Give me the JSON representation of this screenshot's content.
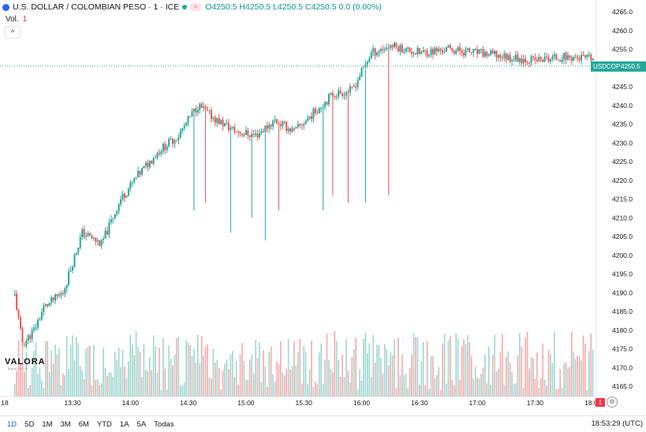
{
  "header": {
    "symbol_title": "U.S. DOLLAR / COLOMBIAN PESO · 1 · ICE",
    "badge": "≈",
    "ohlc": "O4250.5 H4250.5 L4250.5 C4250.5 0.0 (0.00%)",
    "volume_label": "Vol.",
    "volume_value": "1",
    "collapse_glyph": "^"
  },
  "price_badge": {
    "symbol": "USDCOP",
    "price": "4250.5"
  },
  "marker": "1",
  "watermark": {
    "word": "VALORA",
    "sub": "ANALITIK"
  },
  "bottom": {
    "timeframes": [
      "1D",
      "5D",
      "1M",
      "3M",
      "6M",
      "YTD",
      "1A",
      "5A",
      "Todas"
    ],
    "clock": "18:53:29 (UTC)"
  },
  "colors": {
    "up": "#26a69a",
    "down": "#ef5350",
    "vol_up": "#9ed6d0",
    "vol_down": "#f7a9a7",
    "accent": "#2962ff"
  },
  "chart_data": {
    "type": "candlestick",
    "title": "U.S. DOLLAR / COLOMBIAN PESO · 1 · ICE",
    "y_ticks": [
      4165,
      4170,
      4175,
      4180,
      4185,
      4190,
      4195,
      4200,
      4205,
      4210,
      4215,
      4220,
      4225,
      4230,
      4235,
      4240,
      4245,
      4250,
      4255,
      4260,
      4265
    ],
    "ylim": [
      4162,
      4266
    ],
    "x_ticks": [
      "18",
      "13:30",
      "14:00",
      "14:30",
      "15:00",
      "15:30",
      "16:00",
      "16:30",
      "17:00",
      "17:30",
      "18:00"
    ],
    "last_price": 4250.5,
    "anchors": [
      [
        "12:58",
        4196
      ],
      [
        "13:04",
        4176
      ],
      [
        "13:10",
        4180
      ],
      [
        "13:15",
        4186
      ],
      [
        "13:25",
        4190
      ],
      [
        "13:35",
        4206
      ],
      [
        "13:45",
        4203
      ],
      [
        "13:55",
        4215
      ],
      [
        "14:05",
        4222
      ],
      [
        "14:15",
        4228
      ],
      [
        "14:25",
        4232
      ],
      [
        "14:35",
        4240
      ],
      [
        "14:45",
        4236
      ],
      [
        "14:55",
        4233
      ],
      [
        "15:05",
        4232
      ],
      [
        "15:15",
        4236
      ],
      [
        "15:25",
        4233
      ],
      [
        "15:35",
        4238
      ],
      [
        "15:45",
        4243
      ],
      [
        "15:55",
        4244
      ],
      [
        "16:05",
        4254
      ],
      [
        "16:15",
        4256
      ],
      [
        "16:30",
        4254
      ],
      [
        "16:45",
        4255
      ],
      [
        "17:00",
        4254
      ],
      [
        "17:15",
        4253
      ],
      [
        "17:30",
        4252
      ],
      [
        "17:45",
        4253
      ],
      [
        "18:08",
        4252
      ]
    ],
    "long_wicks": [
      [
        "14:33",
        4212
      ],
      [
        "14:39",
        4214
      ],
      [
        "14:52",
        4206
      ],
      [
        "15:03",
        4210
      ],
      [
        "15:10",
        4204
      ],
      [
        "15:17",
        4212
      ],
      [
        "15:40",
        4212
      ],
      [
        "15:45",
        4216
      ],
      [
        "15:53",
        4214
      ],
      [
        "16:02",
        4214
      ],
      [
        "16:14",
        4216
      ]
    ]
  }
}
